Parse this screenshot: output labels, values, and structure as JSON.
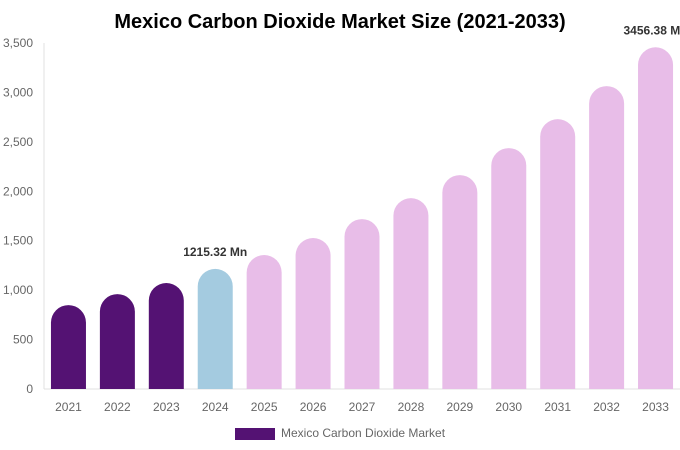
{
  "chart_data": {
    "type": "bar",
    "title": "Mexico Carbon Dioxide Market Size (2021-2033)",
    "xlabel": "",
    "ylabel": "",
    "ylim": [
      0,
      3500
    ],
    "yticks": [
      0,
      500,
      1000,
      1500,
      2000,
      2500,
      3000,
      3500
    ],
    "ytick_labels": [
      "0",
      "500",
      "1,000",
      "1,500",
      "2,000",
      "2,500",
      "3,000",
      "3,500"
    ],
    "categories": [
      "2021",
      "2022",
      "2023",
      "2024",
      "2025",
      "2026",
      "2027",
      "2028",
      "2029",
      "2030",
      "2031",
      "2032",
      "2033"
    ],
    "series": [
      {
        "name": "Mexico Carbon Dioxide Market",
        "values": [
          849,
          960,
          1072,
          1215.32,
          1355,
          1527,
          1719,
          1931,
          2164,
          2437,
          2730,
          3064,
          3456.38
        ]
      }
    ],
    "bar_colors": [
      "#541273",
      "#541273",
      "#541273",
      "#a4cbe0",
      "#e8bde8",
      "#e8bde8",
      "#e8bde8",
      "#e8bde8",
      "#e8bde8",
      "#e8bde8",
      "#e8bde8",
      "#e8bde8",
      "#e8bde8"
    ],
    "annotations": [
      {
        "index": 3,
        "text": "1215.32 Mn"
      },
      {
        "index": 12,
        "text": "3456.38 Mn"
      }
    ],
    "legend": {
      "label": "Mexico Carbon Dioxide Market",
      "color": "#541273",
      "placement": "bottom"
    },
    "grid": false
  }
}
